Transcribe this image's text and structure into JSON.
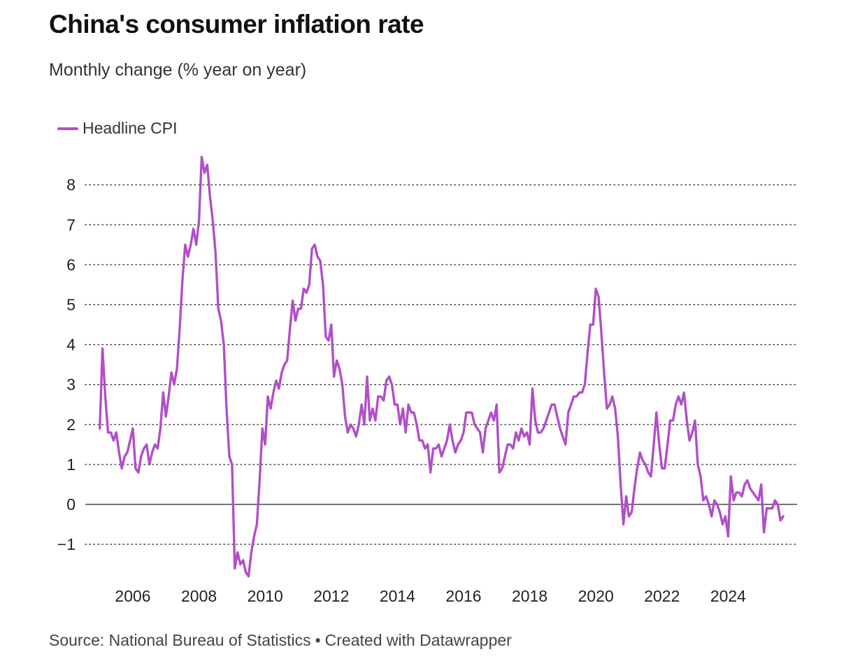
{
  "title": "China's consumer inflation rate",
  "subtitle": "Monthly change (% year on year)",
  "footer": {
    "source": "Source: National Bureau of Statistics",
    "separator": "•",
    "credit": "Created with Datawrapper"
  },
  "colors": {
    "series": "#b04fc8",
    "grid": "#333333",
    "zero_line": "#222222"
  },
  "chart_data": {
    "type": "line",
    "title": "China's consumer inflation rate",
    "subtitle": "Monthly change (% year on year)",
    "xlabel": "",
    "ylabel": "",
    "ylim": [
      -1.8,
      8.8
    ],
    "xlim": [
      2005.0,
      2025.9
    ],
    "y_ticks": [
      -1,
      0,
      1,
      2,
      3,
      4,
      5,
      6,
      7,
      8
    ],
    "y_tick_labels": [
      "−1",
      "0",
      "1",
      "2",
      "3",
      "4",
      "5",
      "6",
      "7",
      "8"
    ],
    "x_ticks": [
      2006,
      2008,
      2010,
      2012,
      2014,
      2016,
      2018,
      2020,
      2022,
      2024
    ],
    "x_tick_labels": [
      "2006",
      "2008",
      "2010",
      "2012",
      "2014",
      "2016",
      "2018",
      "2020",
      "2022",
      "2024"
    ],
    "grid": "horizontal dotted",
    "legend": "top-left",
    "series": [
      {
        "name": "Headline CPI",
        "start": "2005-01",
        "frequency": "monthly",
        "values": [
          1.9,
          3.9,
          2.7,
          1.8,
          1.8,
          1.6,
          1.8,
          1.3,
          0.9,
          1.2,
          1.3,
          1.6,
          1.9,
          0.9,
          0.8,
          1.2,
          1.4,
          1.5,
          1.0,
          1.3,
          1.5,
          1.4,
          1.9,
          2.8,
          2.2,
          2.7,
          3.3,
          3.0,
          3.4,
          4.4,
          5.6,
          6.5,
          6.2,
          6.5,
          6.9,
          6.5,
          7.1,
          8.7,
          8.3,
          8.5,
          7.7,
          7.1,
          6.3,
          4.9,
          4.6,
          4.0,
          2.4,
          1.2,
          1.0,
          -1.6,
          -1.2,
          -1.5,
          -1.4,
          -1.7,
          -1.8,
          -1.2,
          -0.8,
          -0.5,
          0.6,
          1.9,
          1.5,
          2.7,
          2.4,
          2.8,
          3.1,
          2.9,
          3.3,
          3.5,
          3.6,
          4.4,
          5.1,
          4.6,
          4.9,
          4.9,
          5.4,
          5.3,
          5.5,
          6.4,
          6.5,
          6.2,
          6.1,
          5.5,
          4.2,
          4.1,
          4.5,
          3.2,
          3.6,
          3.4,
          3.0,
          2.2,
          1.8,
          2.0,
          1.9,
          1.7,
          2.0,
          2.5,
          2.0,
          3.2,
          2.1,
          2.4,
          2.1,
          2.7,
          2.7,
          2.6,
          3.1,
          3.2,
          3.0,
          2.5,
          2.5,
          2.0,
          2.4,
          1.8,
          2.5,
          2.3,
          2.3,
          2.0,
          1.6,
          1.6,
          1.4,
          1.5,
          0.8,
          1.4,
          1.4,
          1.5,
          1.2,
          1.4,
          1.6,
          2.0,
          1.6,
          1.3,
          1.5,
          1.6,
          1.8,
          2.3,
          2.3,
          2.3,
          2.0,
          1.9,
          1.8,
          1.3,
          1.9,
          2.1,
          2.3,
          2.1,
          2.5,
          0.8,
          0.9,
          1.2,
          1.5,
          1.5,
          1.4,
          1.8,
          1.6,
          1.9,
          1.7,
          1.8,
          1.5,
          2.9,
          2.1,
          1.8,
          1.8,
          1.9,
          2.1,
          2.3,
          2.5,
          2.5,
          2.2,
          1.9,
          1.7,
          1.5,
          2.3,
          2.5,
          2.7,
          2.7,
          2.8,
          2.8,
          3.0,
          3.8,
          4.5,
          4.5,
          5.4,
          5.2,
          4.3,
          3.3,
          2.4,
          2.5,
          2.7,
          2.4,
          1.7,
          0.5,
          -0.5,
          0.2,
          -0.3,
          -0.2,
          0.4,
          0.9,
          1.3,
          1.1,
          1.0,
          0.8,
          0.7,
          1.5,
          2.3,
          1.5,
          0.9,
          0.9,
          1.5,
          2.1,
          2.1,
          2.5,
          2.7,
          2.5,
          2.8,
          2.1,
          1.6,
          1.8,
          2.1,
          1.0,
          0.7,
          0.1,
          0.2,
          0.0,
          -0.3,
          0.1,
          0.0,
          -0.2,
          -0.5,
          -0.3,
          -0.8,
          0.7,
          0.1,
          0.3,
          0.3,
          0.2,
          0.5,
          0.6,
          0.4,
          0.3,
          0.2,
          0.1,
          0.5,
          -0.7,
          -0.1,
          -0.1,
          -0.1,
          0.1,
          0.0,
          -0.4,
          -0.3
        ]
      }
    ]
  }
}
